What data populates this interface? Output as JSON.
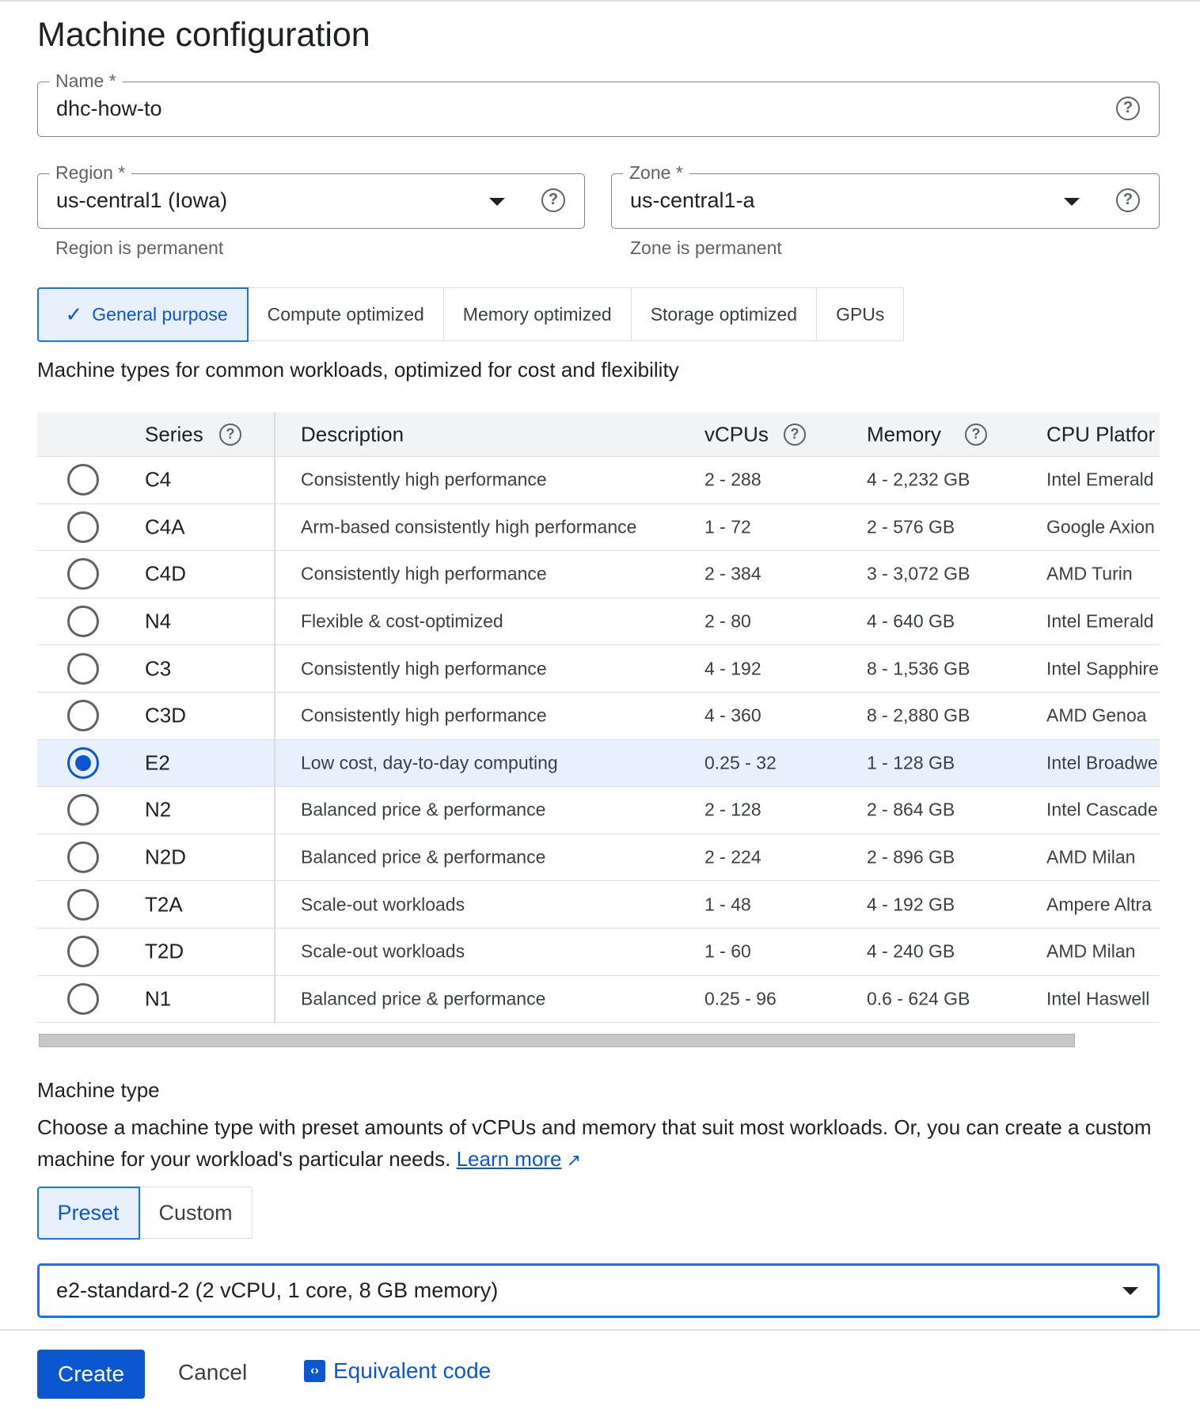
{
  "title": "Machine configuration",
  "name_field": {
    "label": "Name *",
    "value": "dhc-how-to"
  },
  "region": {
    "label": "Region *",
    "value": "us-central1 (Iowa)",
    "hint": "Region is permanent"
  },
  "zone": {
    "label": "Zone *",
    "value": "us-central1-a",
    "hint": "Zone is permanent"
  },
  "family_tabs": [
    {
      "label": "General purpose",
      "selected": true
    },
    {
      "label": "Compute optimized"
    },
    {
      "label": "Memory optimized"
    },
    {
      "label": "Storage optimized"
    },
    {
      "label": "GPUs"
    }
  ],
  "family_description": "Machine types for common workloads, optimized for cost and flexibility",
  "table": {
    "headers": {
      "series": "Series",
      "description": "Description",
      "vcpus": "vCPUs",
      "memory": "Memory",
      "cpu": "CPU Platfor"
    },
    "rows": [
      {
        "series": "C4",
        "description": "Consistently high performance",
        "vcpus": "2 - 288",
        "memory": "4 - 2,232 GB",
        "cpu": "Intel Emerald"
      },
      {
        "series": "C4A",
        "description": "Arm-based consistently high performance",
        "vcpus": "1 - 72",
        "memory": "2 - 576 GB",
        "cpu": "Google Axion"
      },
      {
        "series": "C4D",
        "description": "Consistently high performance",
        "vcpus": "2 - 384",
        "memory": "3 - 3,072 GB",
        "cpu": "AMD Turin"
      },
      {
        "series": "N4",
        "description": "Flexible & cost-optimized",
        "vcpus": "2 - 80",
        "memory": "4 - 640 GB",
        "cpu": "Intel Emerald"
      },
      {
        "series": "C3",
        "description": "Consistently high performance",
        "vcpus": "4 - 192",
        "memory": "8 - 1,536 GB",
        "cpu": "Intel Sapphire"
      },
      {
        "series": "C3D",
        "description": "Consistently high performance",
        "vcpus": "4 - 360",
        "memory": "8 - 2,880 GB",
        "cpu": "AMD Genoa"
      },
      {
        "series": "E2",
        "description": "Low cost, day-to-day computing",
        "vcpus": "0.25 - 32",
        "memory": "1 - 128 GB",
        "cpu": "Intel Broadwe",
        "selected": true
      },
      {
        "series": "N2",
        "description": "Balanced price & performance",
        "vcpus": "2 - 128",
        "memory": "2 - 864 GB",
        "cpu": "Intel Cascade"
      },
      {
        "series": "N2D",
        "description": "Balanced price & performance",
        "vcpus": "2 - 224",
        "memory": "2 - 896 GB",
        "cpu": "AMD Milan"
      },
      {
        "series": "T2A",
        "description": "Scale-out workloads",
        "vcpus": "1 - 48",
        "memory": "4 - 192 GB",
        "cpu": "Ampere Altra"
      },
      {
        "series": "T2D",
        "description": "Scale-out workloads",
        "vcpus": "1 - 60",
        "memory": "4 - 240 GB",
        "cpu": "AMD Milan"
      },
      {
        "series": "N1",
        "description": "Balanced price & performance",
        "vcpus": "0.25 - 96",
        "memory": "0.6 - 624 GB",
        "cpu": "Intel Haswell"
      }
    ]
  },
  "machine_type": {
    "heading": "Machine type",
    "text": "Choose a machine type with preset amounts of vCPUs and memory that suit most workloads. Or, you can create a custom machine for your workload's particular needs.",
    "learn_more": "Learn more",
    "modes": [
      {
        "label": "Preset",
        "selected": true
      },
      {
        "label": "Custom"
      }
    ],
    "selected": "e2-standard-2 (2 vCPU, 1 core, 8 GB memory)"
  },
  "actions": {
    "create": "Create",
    "cancel": "Cancel",
    "equivalent_code": "Equivalent code"
  },
  "colors": {
    "accent": "#0b57d0",
    "selected_bg": "#e8f0fe"
  }
}
